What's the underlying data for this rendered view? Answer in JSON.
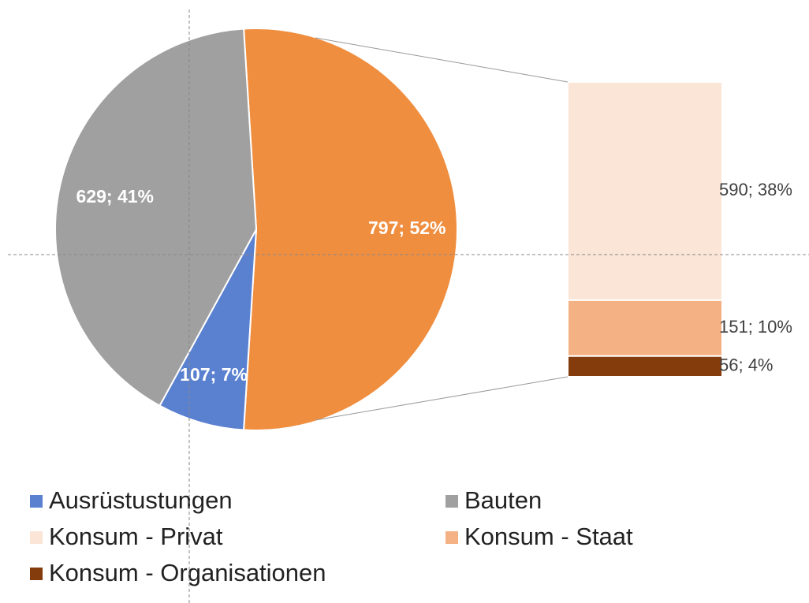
{
  "chart_data": {
    "type": "pie-of-bar",
    "categories": [
      "Ausrüstustungen",
      "Bauten",
      "Konsum - Privat",
      "Konsum - Staat",
      "Konsum - Organisationen"
    ],
    "values": [
      107,
      629,
      590,
      151,
      56
    ],
    "value_labels": [
      "107; 7%",
      "629; 41%",
      "590; 38%",
      "151; 10%",
      "56; 4%"
    ],
    "colors": [
      "#5a80d0",
      "#a0a0a0",
      "#fbe5d6",
      "#f4b183",
      "#843c0c"
    ],
    "secondary_count": 3,
    "other": {
      "value": 797,
      "value_label": "797; 52%",
      "color": "#f08e40"
    },
    "legend": "bottom"
  }
}
